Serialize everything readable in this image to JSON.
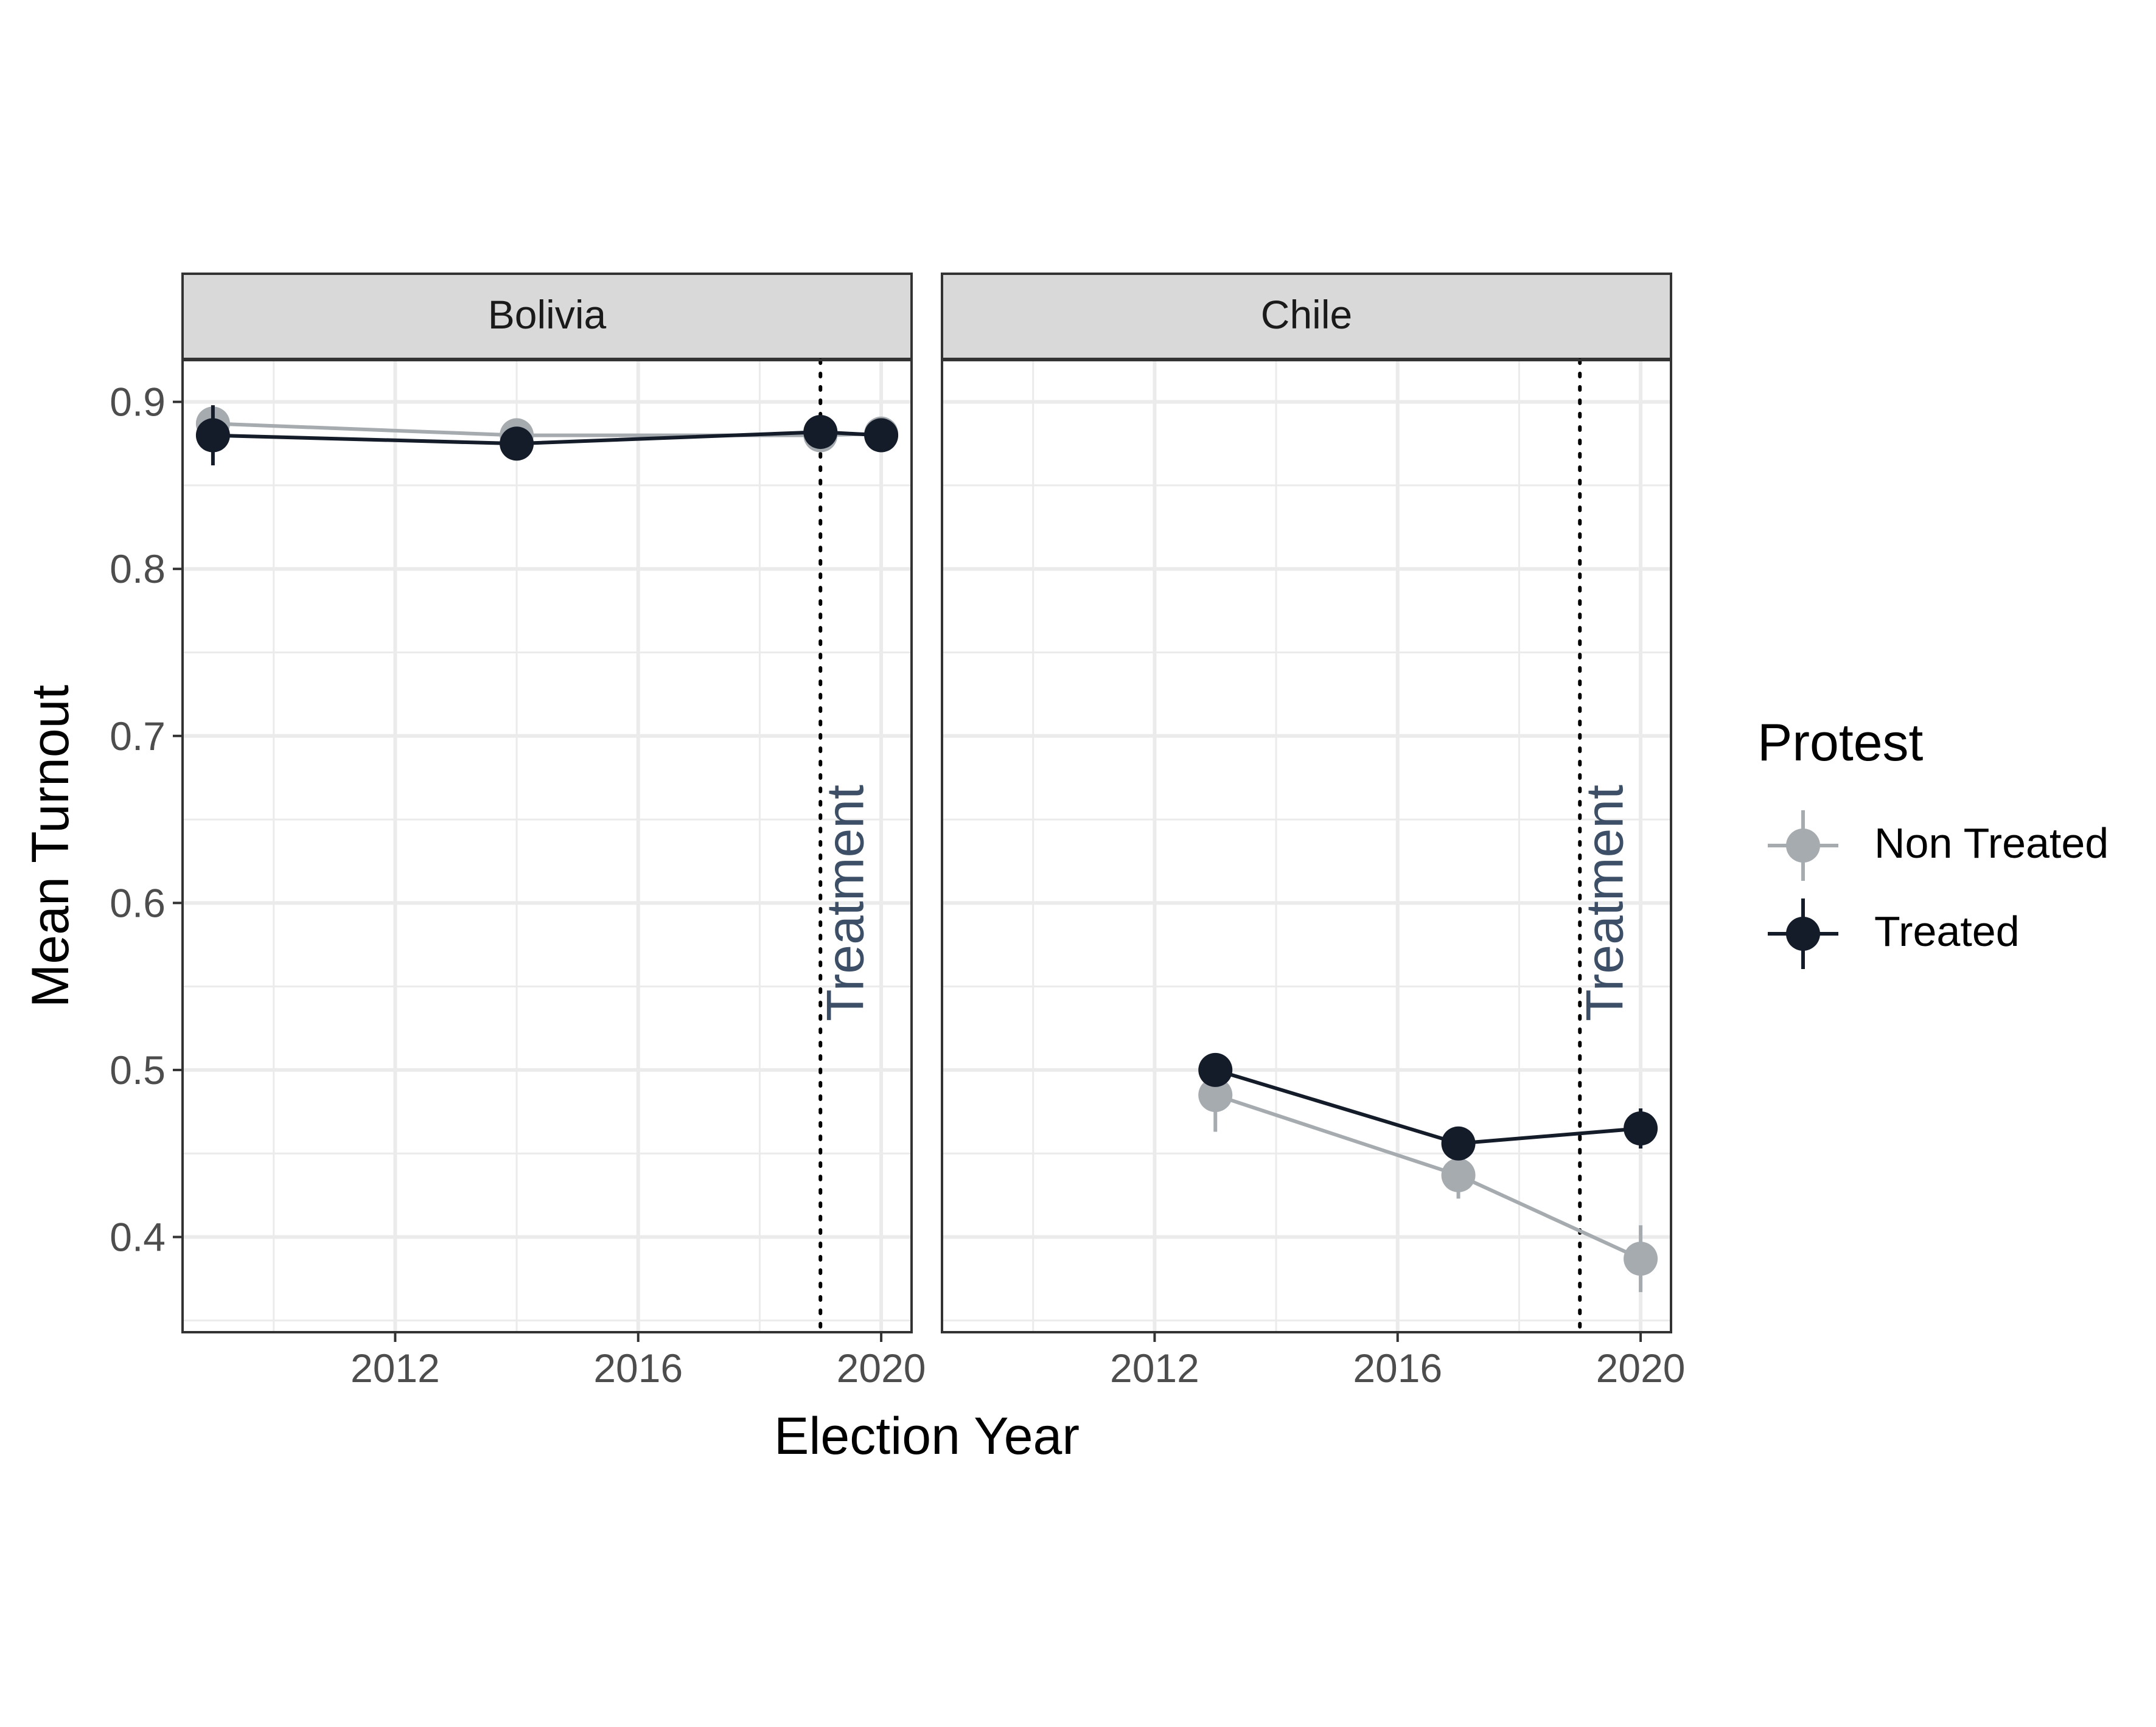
{
  "chart_data": {
    "type": "line",
    "xlabel": "Election Year",
    "ylabel": "Mean Turnout",
    "xlim": [
      2008.5,
      2020.5
    ],
    "ylim": [
      0.343,
      0.925
    ],
    "x_ticks": [
      2012,
      2016,
      2020
    ],
    "y_ticks": [
      0.4,
      0.5,
      0.6,
      0.7,
      0.8,
      0.9
    ],
    "x_tick_labels": [
      "2012",
      "2016",
      "2020"
    ],
    "y_tick_labels": [
      "0.4",
      "0.5",
      "0.6",
      "0.7",
      "0.8",
      "0.9"
    ],
    "grid": true,
    "legend": {
      "title": "Protest",
      "placement": "right",
      "entries": [
        "Non Treated",
        "Treated"
      ]
    },
    "series_colors": {
      "Non Treated": "#a6abb0",
      "Treated": "#141c2a"
    },
    "annotation": {
      "label": "Treatment",
      "x": 2019,
      "color": "#3d4f66"
    },
    "panels": [
      {
        "title": "Bolivia",
        "series": [
          {
            "name": "Non Treated",
            "x": [
              2009,
              2014,
              2019,
              2020
            ],
            "y": [
              0.887,
              0.88,
              0.88,
              0.881
            ],
            "err": [
              0.004,
              0.004,
              0.004,
              0.004
            ]
          },
          {
            "name": "Treated",
            "x": [
              2009,
              2014,
              2019,
              2020
            ],
            "y": [
              0.88,
              0.875,
              0.882,
              0.88
            ],
            "err": [
              0.018,
              0.004,
              0.004,
              0.004
            ]
          }
        ]
      },
      {
        "title": "Chile",
        "series": [
          {
            "name": "Non Treated",
            "x": [
              2013,
              2017,
              2020
            ],
            "y": [
              0.485,
              0.437,
              0.387
            ],
            "err": [
              0.022,
              0.014,
              0.02
            ]
          },
          {
            "name": "Treated",
            "x": [
              2013,
              2017,
              2020
            ],
            "y": [
              0.5,
              0.456,
              0.465
            ],
            "err": [
              0.004,
              0.004,
              0.012
            ]
          }
        ]
      }
    ]
  }
}
